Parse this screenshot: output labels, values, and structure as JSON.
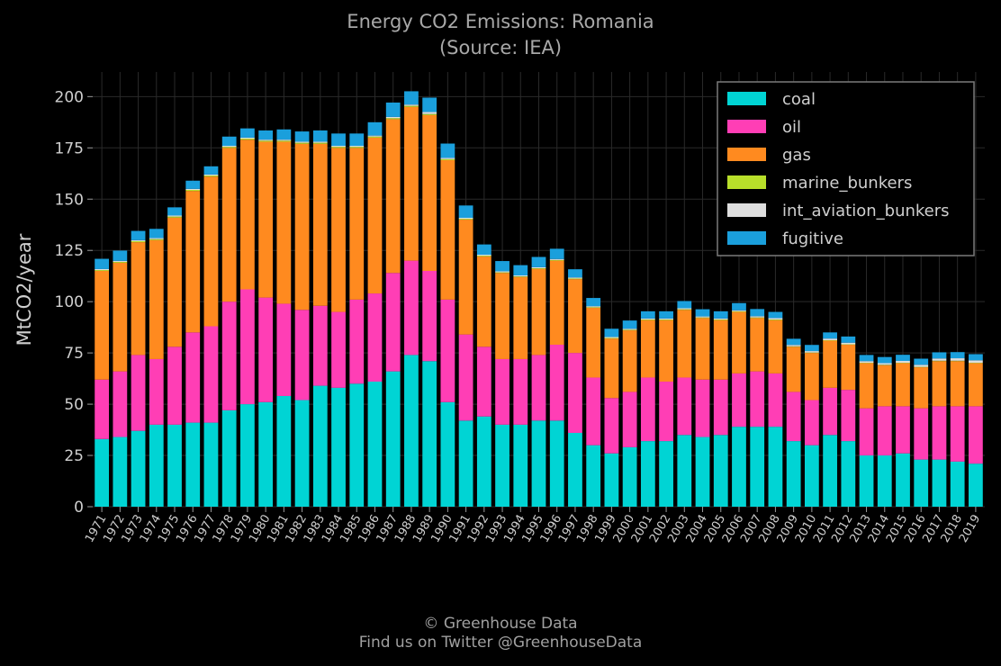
{
  "chart_data": {
    "type": "bar",
    "stacked": true,
    "title": "Energy CO2 Emissions: Romania",
    "subtitle": "(Source: IEA)",
    "xlabel": "",
    "ylabel": "MtCO2/year",
    "ylim": [
      0,
      212
    ],
    "yticks": [
      0,
      25,
      50,
      75,
      100,
      125,
      150,
      175,
      200
    ],
    "grid": true,
    "legend_position": "top-right",
    "categories": [
      "1971",
      "1972",
      "1973",
      "1974",
      "1975",
      "1976",
      "1977",
      "1978",
      "1979",
      "1980",
      "1981",
      "1982",
      "1983",
      "1984",
      "1985",
      "1986",
      "1987",
      "1988",
      "1989",
      "1990",
      "1991",
      "1992",
      "1993",
      "1994",
      "1995",
      "1996",
      "1997",
      "1998",
      "1999",
      "2000",
      "2001",
      "2002",
      "2003",
      "2004",
      "2005",
      "2006",
      "2007",
      "2008",
      "2009",
      "2010",
      "2011",
      "2012",
      "2013",
      "2014",
      "2015",
      "2016",
      "2017",
      "2018",
      "2019"
    ],
    "series": [
      {
        "name": "coal",
        "color": "#00d4d4",
        "values": [
          33,
          34,
          37,
          40,
          40,
          41,
          41,
          47,
          50,
          51,
          54,
          52,
          59,
          58,
          60,
          61,
          66,
          74,
          71,
          51,
          42,
          44,
          40,
          40,
          42,
          42,
          36,
          30,
          26,
          29,
          32,
          32,
          35,
          34,
          35,
          39,
          39,
          39,
          32,
          30,
          35,
          32,
          25,
          25,
          26,
          23,
          23,
          22,
          21
        ]
      },
      {
        "name": "oil",
        "color": "#ff3eb5",
        "values": [
          29,
          32,
          37,
          32,
          38,
          44,
          47,
          53,
          56,
          51,
          45,
          44,
          39,
          37,
          41,
          43,
          48,
          46,
          44,
          50,
          42,
          34,
          32,
          32,
          32,
          37,
          39,
          33,
          27,
          27,
          31,
          29,
          28,
          28,
          27,
          26,
          27,
          26,
          24,
          22,
          23,
          25,
          23,
          24,
          23,
          25,
          26,
          27,
          28
        ]
      },
      {
        "name": "gas",
        "color": "#ff8a1f",
        "values": [
          53,
          53,
          55,
          58,
          63,
          69,
          73,
          75,
          73,
          76,
          79,
          81,
          79,
          80,
          74,
          76,
          75,
          75,
          76,
          68,
          56,
          44,
          42,
          40,
          42,
          41,
          36,
          34,
          29,
          30,
          28,
          30,
          33,
          30,
          29,
          30,
          26,
          26,
          22,
          23,
          23,
          22,
          22,
          20,
          21,
          20,
          22,
          22,
          21
        ]
      },
      {
        "name": "marine_bunkers",
        "color": "#b8df2a",
        "values": [
          0.4,
          0.4,
          0.5,
          0.5,
          0.5,
          0.5,
          0.5,
          0.5,
          0.5,
          0.5,
          0.5,
          0.5,
          0.5,
          0.5,
          0.5,
          0.5,
          0.5,
          0.5,
          0.5,
          0.5,
          0.4,
          0.4,
          0.3,
          0.3,
          0.3,
          0.3,
          0.3,
          0.3,
          0.3,
          0.3,
          0.3,
          0.3,
          0.3,
          0.3,
          0.3,
          0.3,
          0.3,
          0.3,
          0.2,
          0.2,
          0.2,
          0.2,
          0.2,
          0.2,
          0.2,
          0.2,
          0.2,
          0.2,
          0.2
        ]
      },
      {
        "name": "int_aviation_bunkers",
        "color": "#dedede",
        "values": [
          0.5,
          0.5,
          0.5,
          0.5,
          0.5,
          0.5,
          0.5,
          0.5,
          0.5,
          0.5,
          0.5,
          0.5,
          0.5,
          0.5,
          0.5,
          0.5,
          0.6,
          0.6,
          1,
          0.6,
          0.5,
          0.5,
          0.5,
          0.5,
          0.5,
          0.5,
          0.5,
          0.5,
          0.5,
          0.5,
          0.5,
          0.5,
          0.5,
          0.5,
          0.5,
          0.5,
          0.6,
          0.7,
          0.7,
          0.7,
          0.8,
          0.8,
          0.8,
          0.8,
          0.9,
          1,
          1.1,
          1.2,
          1.2
        ]
      },
      {
        "name": "fugitive",
        "color": "#1a9fdc",
        "values": [
          5,
          5,
          4.5,
          4.5,
          4,
          4,
          4,
          4.5,
          4.5,
          4.5,
          5,
          5,
          5.5,
          6,
          6,
          6.5,
          7,
          6.5,
          7,
          7,
          6,
          5,
          5,
          5,
          5,
          5,
          4,
          4,
          4,
          4,
          3.5,
          3.5,
          3.5,
          3.5,
          3.5,
          3.5,
          3.5,
          3,
          3,
          3,
          3,
          3,
          3,
          3,
          3,
          3,
          3,
          3,
          3
        ]
      }
    ]
  },
  "footer": {
    "line1": "© Greenhouse Data",
    "line2": "Find us on Twitter @GreenhouseData"
  },
  "colors": {
    "background": "#000000",
    "grid": "#2a2a2a",
    "axis": "#9a9a9a",
    "text": "#cfcfcf",
    "legend_border": "#7a7a7a"
  }
}
